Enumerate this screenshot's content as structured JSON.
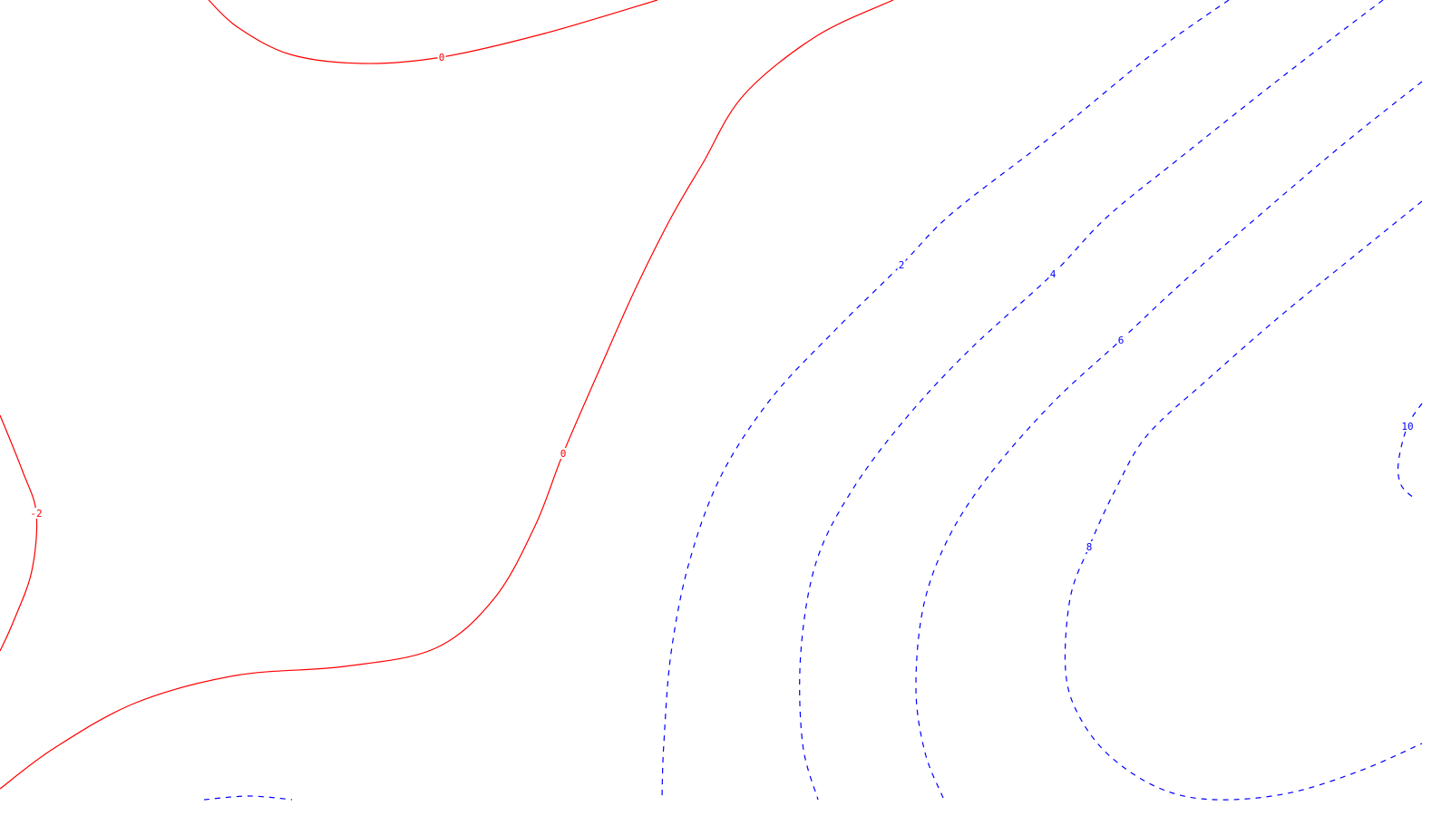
{
  "chart_data": {
    "type": "contour",
    "title": "",
    "xlabel": "",
    "ylabel": "",
    "grid": false,
    "legend": "none",
    "style": {
      "negative_or_zero_color": "#ff0000",
      "positive_color": "#0000ff",
      "negative_or_zero_line": "solid",
      "positive_line": "dashed"
    },
    "levels": [
      -2,
      0,
      2,
      4,
      6,
      8,
      10
    ],
    "contours": [
      {
        "level": 0,
        "label": "0",
        "points": [
          [
            230,
            0
          ],
          [
            262,
            30
          ],
          [
            320,
            60
          ],
          [
            400,
            70
          ],
          [
            487,
            63
          ],
          [
            600,
            37
          ],
          [
            725,
            0
          ]
        ]
      },
      {
        "level": 0,
        "label": "0",
        "points": [
          [
            985,
            0
          ],
          [
            900,
            40
          ],
          [
            820,
            105
          ],
          [
            775,
            180
          ],
          [
            740,
            240
          ],
          [
            700,
            320
          ],
          [
            660,
            410
          ],
          [
            621,
            500
          ],
          [
            590,
            580
          ],
          [
            545,
            660
          ],
          [
            480,
            715
          ],
          [
            380,
            735
          ],
          [
            260,
            745
          ],
          [
            150,
            775
          ],
          [
            60,
            825
          ],
          [
            0,
            870
          ]
        ]
      },
      {
        "level": -2,
        "label": "-2",
        "points": [
          [
            0,
            458
          ],
          [
            25,
            520
          ],
          [
            40,
            566
          ],
          [
            35,
            630
          ],
          [
            15,
            685
          ],
          [
            0,
            718
          ]
        ]
      },
      {
        "level": 2,
        "label": "2",
        "points": [
          [
            1355,
            0
          ],
          [
            1270,
            60
          ],
          [
            1160,
            150
          ],
          [
            1050,
            235
          ],
          [
            994,
            292
          ],
          [
            920,
            365
          ],
          [
            850,
            440
          ],
          [
            795,
            525
          ],
          [
            760,
            620
          ],
          [
            740,
            720
          ],
          [
            732,
            820
          ],
          [
            730,
            880
          ]
        ]
      },
      {
        "level": 2,
        "label": "",
        "points": [
          [
            225,
            882
          ],
          [
            275,
            878
          ],
          [
            322,
            882
          ]
        ]
      },
      {
        "level": 4,
        "label": "4",
        "points": [
          [
            1525,
            0
          ],
          [
            1420,
            80
          ],
          [
            1300,
            175
          ],
          [
            1220,
            240
          ],
          [
            1161,
            302
          ],
          [
            1070,
            385
          ],
          [
            1000,
            460
          ],
          [
            940,
            540
          ],
          [
            900,
            620
          ],
          [
            883,
            720
          ],
          [
            885,
            820
          ],
          [
            902,
            882
          ]
        ]
      },
      {
        "level": 6,
        "label": "6",
        "points": [
          [
            1568,
            90
          ],
          [
            1480,
            160
          ],
          [
            1380,
            245
          ],
          [
            1300,
            315
          ],
          [
            1236,
            375
          ],
          [
            1160,
            445
          ],
          [
            1090,
            525
          ],
          [
            1045,
            595
          ],
          [
            1018,
            670
          ],
          [
            1010,
            760
          ],
          [
            1020,
            830
          ],
          [
            1040,
            880
          ]
        ]
      },
      {
        "level": 8,
        "label": "8",
        "points": [
          [
            1568,
            222
          ],
          [
            1490,
            285
          ],
          [
            1410,
            350
          ],
          [
            1330,
            420
          ],
          [
            1265,
            480
          ],
          [
            1230,
            540
          ],
          [
            1201,
            603
          ],
          [
            1180,
            660
          ],
          [
            1175,
            740
          ],
          [
            1190,
            790
          ],
          [
            1225,
            835
          ],
          [
            1280,
            870
          ],
          [
            1340,
            882
          ],
          [
            1420,
            875
          ],
          [
            1500,
            850
          ],
          [
            1568,
            820
          ]
        ]
      },
      {
        "level": 10,
        "label": "10",
        "points": [
          [
            1568,
            445
          ],
          [
            1552,
            470
          ],
          [
            1542,
            510
          ],
          [
            1545,
            535
          ],
          [
            1560,
            550
          ]
        ]
      }
    ]
  }
}
